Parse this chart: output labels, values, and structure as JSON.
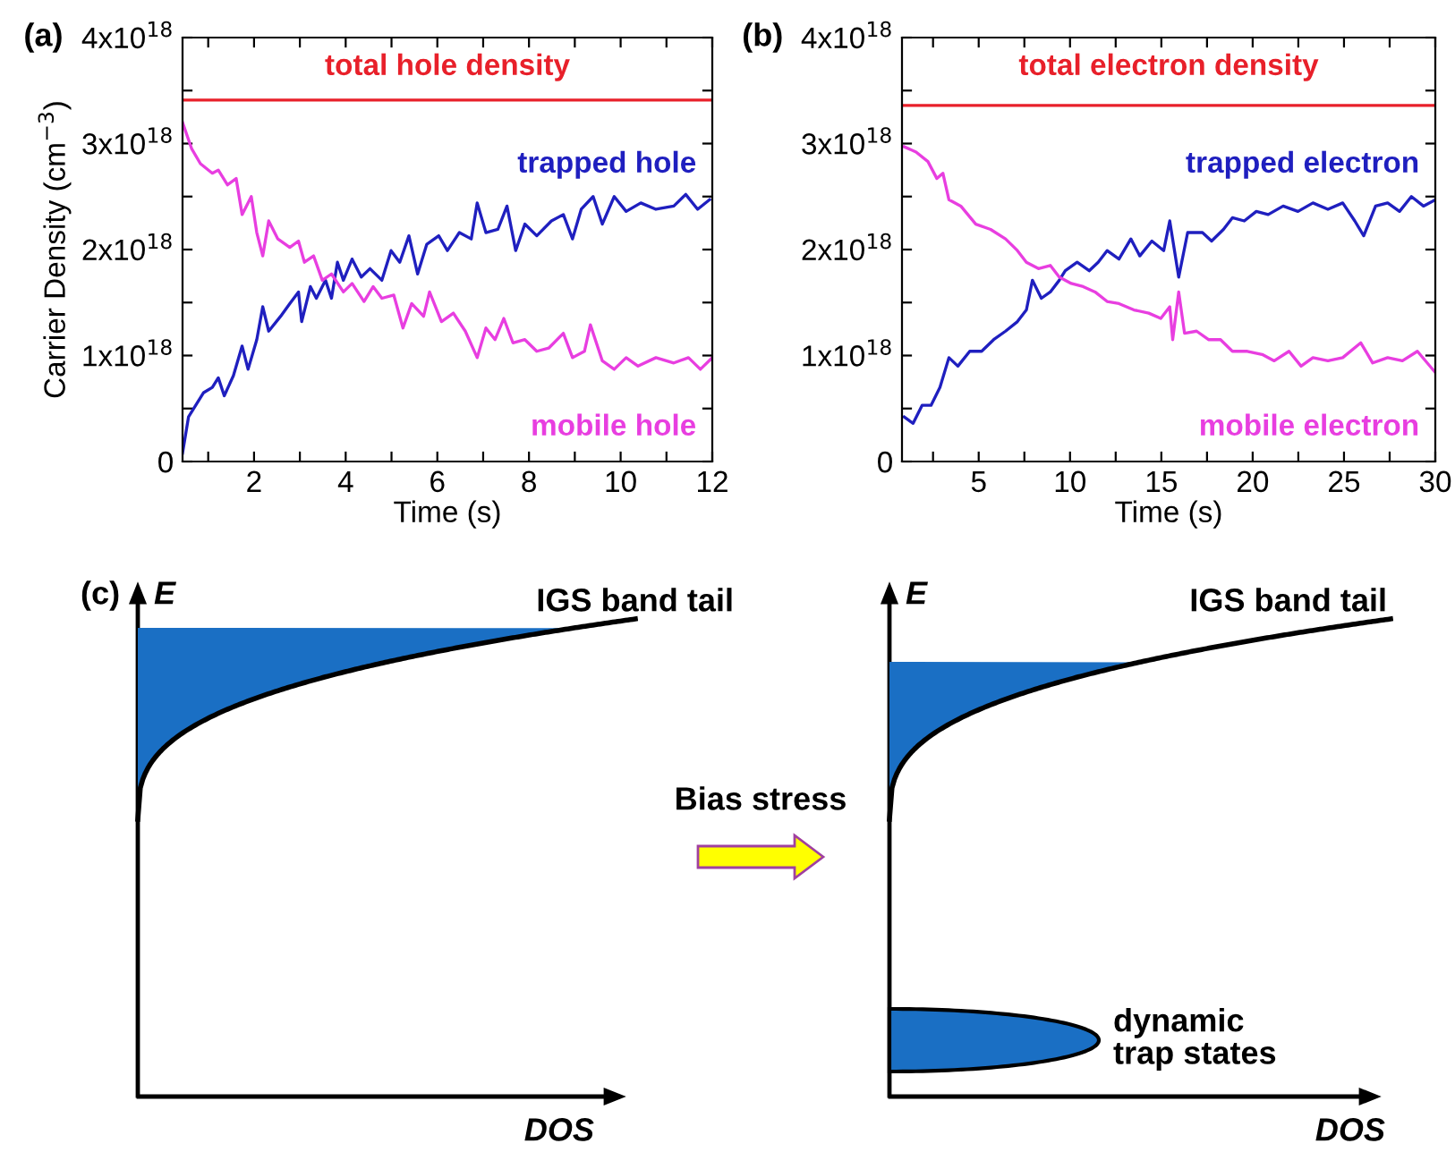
{
  "chart_data": [
    {
      "type": "line",
      "annotations": [
        "(a)"
      ],
      "xlabel": "Time (s)",
      "ylabel": "Carrier Density (cm$^{−3}$)",
      "xlim": [
        0.44,
        12
      ],
      "ylim": [
        0,
        4e+18
      ],
      "xticks": [
        {
          "value": 1,
          "label": null
        },
        2,
        {
          "value": 3,
          "label": null
        },
        4,
        {
          "value": 5,
          "label": null
        },
        6,
        {
          "value": 7,
          "label": null
        },
        8,
        {
          "value": 9,
          "label": null
        },
        10,
        {
          "value": 11,
          "label": null
        },
        12
      ],
      "yticks": [
        0,
        {
          "value": 5e+17,
          "label": null
        },
        {
          "value": 1e+18,
          "label": "1x10$^{18}$"
        },
        {
          "value": 1.5e+18,
          "label": null
        },
        {
          "value": 2e+18,
          "label": "2x10$^{18}$"
        },
        {
          "value": 2.5e+18,
          "label": null
        },
        {
          "value": 3e+18,
          "label": "3x10$^{18}$"
        },
        {
          "value": 3.5e+18,
          "label": null
        },
        {
          "value": 4e+18,
          "label": "4x10$^{18}$"
        }
      ],
      "grid": false,
      "legend": false,
      "series": [
        {
          "name": "total hole density",
          "color": "#e8202a",
          "x": [
            0.45,
            12
          ],
          "values": [
            3.41e+18,
            3.41e+18
          ]
        },
        {
          "name": "trapped hole",
          "color": "#1f1fbf",
          "x": [
            0.44,
            0.57,
            0.9,
            1.09,
            1.22,
            1.35,
            1.55,
            1.74,
            1.87,
            2.06,
            2.19,
            2.32,
            2.58,
            2.78,
            2.97,
            3.04,
            3.23,
            3.36,
            3.56,
            3.69,
            3.82,
            3.95,
            4.14,
            4.34,
            4.53,
            4.79,
            4.99,
            5.18,
            5.38,
            5.57,
            5.77,
            6.03,
            6.22,
            6.48,
            6.74,
            6.87,
            7.06,
            7.32,
            7.52,
            7.71,
            7.91,
            8.17,
            8.49,
            8.75,
            8.95,
            9.14,
            9.4,
            9.6,
            9.86,
            10.12,
            10.44,
            10.77,
            11.16,
            11.42,
            11.68,
            11.94
          ],
          "values": [
            8e+16,
            4.2e+17,
            6.5e+17,
            7e+17,
            7.9e+17,
            6.2e+17,
            8.1e+17,
            1.09e+18,
            8.7e+17,
            1.15e+18,
            1.46e+18,
            1.23e+18,
            1.37e+18,
            1.49e+18,
            1.6e+18,
            1.32e+18,
            1.65e+18,
            1.54e+18,
            1.71e+18,
            1.54e+18,
            1.88e+18,
            1.71e+18,
            1.91e+18,
            1.74e+18,
            1.82e+18,
            1.71e+18,
            1.99e+18,
            1.88e+18,
            2.13e+18,
            1.77e+18,
            2.05e+18,
            2.13e+18,
            1.99e+18,
            2.16e+18,
            2.1e+18,
            2.44e+18,
            2.16e+18,
            2.19e+18,
            2.41e+18,
            1.99e+18,
            2.24e+18,
            2.13e+18,
            2.27e+18,
            2.33e+18,
            2.1e+18,
            2.38e+18,
            2.5e+18,
            2.24e+18,
            2.5e+18,
            2.36e+18,
            2.44e+18,
            2.38e+18,
            2.41e+18,
            2.52e+18,
            2.38e+18,
            2.47e+18
          ]
        },
        {
          "name": "mobile hole",
          "color": "#e83ee0",
          "x": [
            0.44,
            0.64,
            0.83,
            1.09,
            1.22,
            1.42,
            1.61,
            1.74,
            1.94,
            2.06,
            2.19,
            2.32,
            2.52,
            2.78,
            2.97,
            3.1,
            3.3,
            3.49,
            3.69,
            3.95,
            4.14,
            4.4,
            4.6,
            4.79,
            5.05,
            5.25,
            5.44,
            5.7,
            5.83,
            6.09,
            6.35,
            6.61,
            6.87,
            7.06,
            7.26,
            7.45,
            7.65,
            7.91,
            8.17,
            8.43,
            8.75,
            8.95,
            9.21,
            9.34,
            9.6,
            9.86,
            10.12,
            10.38,
            10.77,
            11.16,
            11.48,
            11.74,
            12.0
          ],
          "values": [
            3.2e+18,
            2.95e+18,
            2.81e+18,
            2.72e+18,
            2.75e+18,
            2.61e+18,
            2.67e+18,
            2.33e+18,
            2.5e+18,
            2.16e+18,
            1.94e+18,
            2.27e+18,
            2.1e+18,
            2.02e+18,
            2.08e+18,
            1.88e+18,
            1.94e+18,
            1.71e+18,
            1.77e+18,
            1.6e+18,
            1.68e+18,
            1.51e+18,
            1.65e+18,
            1.54e+18,
            1.57e+18,
            1.26e+18,
            1.49e+18,
            1.37e+18,
            1.6e+18,
            1.32e+18,
            1.4e+18,
            1.23e+18,
            9.8e+17,
            1.26e+18,
            1.15e+18,
            1.35e+18,
            1.12e+18,
            1.15e+18,
            1.04e+18,
            1.07e+18,
            1.21e+18,
            9.8e+17,
            1.04e+18,
            1.29e+18,
            9.5e+17,
            8.7e+17,
            9.8e+17,
            9e+17,
            9.8e+17,
            9.3e+17,
            9.8e+17,
            8.7e+17,
            9.8e+17
          ]
        }
      ]
    },
    {
      "type": "line",
      "annotations": [
        "(b)"
      ],
      "xlabel": "Time (s)",
      "xlim": [
        0.8,
        30
      ],
      "ylim": [
        0,
        4e+18
      ],
      "xticks": [
        {
          "value": 2.5,
          "label": null
        },
        5,
        {
          "value": 7.5,
          "label": null
        },
        10,
        {
          "value": 12.5,
          "label": null
        },
        15,
        {
          "value": 17.5,
          "label": null
        },
        20,
        {
          "value": 22.5,
          "label": null
        },
        25,
        {
          "value": 27.5,
          "label": null
        },
        30
      ],
      "yticks": [
        0,
        {
          "value": 5e+17,
          "label": null
        },
        {
          "value": 1e+18,
          "label": "1x10$^{18}$"
        },
        {
          "value": 1.5e+18,
          "label": null
        },
        {
          "value": 2e+18,
          "label": "2x10$^{18}$"
        },
        {
          "value": 2.5e+18,
          "label": null
        },
        {
          "value": 3e+18,
          "label": "3x10$^{18}$"
        },
        {
          "value": 3.5e+18,
          "label": null
        },
        {
          "value": 4e+18,
          "label": "4x10$^{18}$"
        }
      ],
      "grid": false,
      "legend": false,
      "series": [
        {
          "name": "total electron density",
          "color": "#e8202a",
          "x": [
            0.8,
            30
          ],
          "values": [
            3.36e+18,
            3.36e+18
          ]
        },
        {
          "name": "trapped electron",
          "color": "#1f1fbf",
          "x": [
            0.92,
            1.41,
            1.9,
            2.39,
            2.88,
            3.37,
            3.86,
            4.51,
            5.16,
            5.82,
            6.47,
            7.12,
            7.61,
            7.94,
            8.43,
            8.92,
            9.41,
            9.74,
            10.39,
            11.05,
            11.54,
            12.03,
            12.68,
            13.33,
            13.82,
            14.48,
            15.13,
            15.46,
            15.95,
            16.44,
            17.25,
            17.75,
            18.4,
            18.89,
            19.54,
            20.2,
            20.85,
            21.67,
            22.48,
            23.3,
            24.12,
            24.93,
            25.59,
            26.08,
            26.73,
            27.39,
            28.04,
            28.69,
            29.35,
            30.0
          ],
          "values": [
            4.2e+17,
            3.6e+17,
            5.3e+17,
            5.3e+17,
            7e+17,
            9.8e+17,
            9e+17,
            1.04e+18,
            1.04e+18,
            1.15e+18,
            1.23e+18,
            1.32e+18,
            1.43e+18,
            1.71e+18,
            1.54e+18,
            1.6e+18,
            1.71e+18,
            1.8e+18,
            1.88e+18,
            1.8e+18,
            1.88e+18,
            1.99e+18,
            1.91e+18,
            2.1e+18,
            1.94e+18,
            2.08e+18,
            1.99e+18,
            2.27e+18,
            1.74e+18,
            2.16e+18,
            2.16e+18,
            2.08e+18,
            2.19e+18,
            2.3e+18,
            2.27e+18,
            2.36e+18,
            2.33e+18,
            2.41e+18,
            2.36e+18,
            2.44e+18,
            2.38e+18,
            2.44e+18,
            2.27e+18,
            2.13e+18,
            2.41e+18,
            2.44e+18,
            2.36e+18,
            2.5e+18,
            2.41e+18,
            2.47e+18
          ]
        },
        {
          "name": "mobile electron",
          "color": "#e83ee0",
          "x": [
            0.92,
            1.57,
            2.22,
            2.71,
            3.04,
            3.37,
            4.02,
            4.84,
            5.65,
            6.47,
            7.12,
            7.61,
            8.27,
            8.92,
            9.41,
            10.07,
            10.72,
            11.37,
            12.03,
            12.68,
            13.5,
            14.31,
            14.97,
            15.46,
            15.62,
            15.95,
            16.27,
            16.93,
            17.58,
            18.24,
            18.89,
            19.71,
            20.52,
            21.18,
            21.99,
            22.65,
            23.3,
            24.12,
            24.93,
            25.92,
            26.57,
            27.39,
            28.2,
            29.02,
            30.0
          ],
          "values": [
            2.97e+18,
            2.92e+18,
            2.83e+18,
            2.67e+18,
            2.72e+18,
            2.47e+18,
            2.41e+18,
            2.24e+18,
            2.19e+18,
            2.1e+18,
            1.99e+18,
            1.88e+18,
            1.82e+18,
            1.85e+18,
            1.74e+18,
            1.68e+18,
            1.65e+18,
            1.6e+18,
            1.51e+18,
            1.49e+18,
            1.43e+18,
            1.4e+18,
            1.35e+18,
            1.46e+18,
            1.15e+18,
            1.6e+18,
            1.21e+18,
            1.23e+18,
            1.15e+18,
            1.15e+18,
            1.04e+18,
            1.04e+18,
            1.01e+18,
            9.5e+17,
            1.04e+18,
            9e+17,
            9.8e+17,
            9.5e+17,
            9.8e+17,
            1.12e+18,
            9.3e+17,
            9.8e+17,
            9.5e+17,
            1.04e+18,
            8.4e+17
          ]
        }
      ]
    },
    {
      "type": "other",
      "annotations": [
        "(c)",
        "E",
        "IGS band tail",
        "DOS",
        "Bias stress",
        "E",
        "IGS band tail",
        "dynamic\ntrap states",
        "DOS"
      ]
    }
  ]
}
